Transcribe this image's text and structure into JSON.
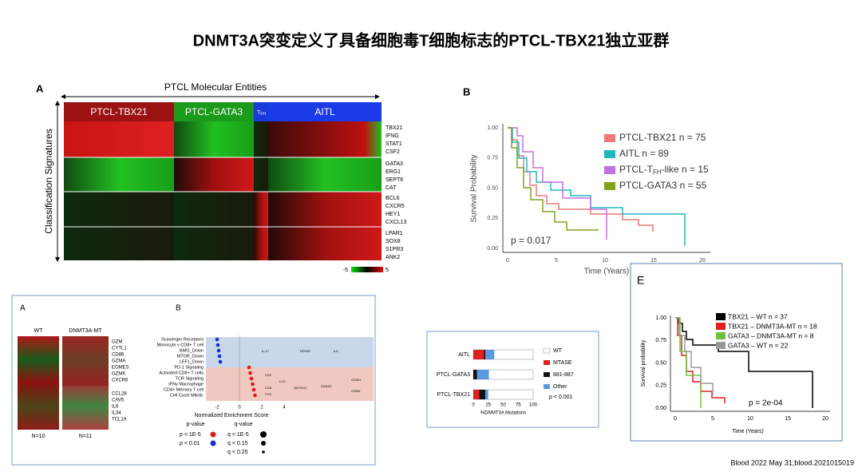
{
  "title": "DNMT3A突变定义了具备细胞毒T细胞标志的PTCL-TBX21独立亚群",
  "panel_a": {
    "label": "A",
    "header": "PTCL Molecular Entities",
    "y_label": "Classification Signatures",
    "groups": [
      "PTCL-TBX21",
      "PTCL-GATA3",
      "T",
      "AITL"
    ],
    "group_sub": "FH",
    "genes": [
      [
        "TBX21",
        "IFNG",
        "STAT1",
        "CSF2"
      ],
      [
        "GATA3",
        "ERG1",
        "SEPT6",
        "CAT"
      ],
      [
        "BCL6",
        "CXCR5",
        "HEY1",
        "CXCL13"
      ],
      [
        "LPAR1",
        "SOX8",
        "S1PR3",
        "ANK2"
      ]
    ],
    "scale": [
      "-5",
      "5"
    ]
  },
  "panel_b": {
    "label": "B",
    "y_label": "Survival Probability",
    "x_label": "Time (Years)",
    "yticks": [
      "1.00",
      "0.75",
      "0.50",
      "0.25",
      "0.00"
    ],
    "xticks": [
      "0",
      "5",
      "10",
      "15",
      "20"
    ],
    "legend": [
      "PTCL-TBX21 n = 75",
      "AITL n = 89",
      {
        "pre": "PTCL-T",
        "sub": "FH",
        "post": "-like n = 15"
      },
      "PTCL-GATA3 n = 55"
    ],
    "pvalue": "p = 0.017"
  },
  "panel_e": {
    "label": "E",
    "y_label": "Survival probability",
    "x_label": "Time (Years)",
    "yticks": [
      "1.00",
      "0.75",
      "0.50",
      "0.25",
      "0.00"
    ],
    "xticks": [
      "0",
      "5",
      "10",
      "15",
      "20"
    ],
    "legend": [
      "TBX21 – WT n = 37",
      "TBX21 – DNMT3A-MT n = 18",
      "GATA3 – DNMT3A-MT n = 8",
      "GATA3 – WT n = 22"
    ],
    "pvalue": "p = 2e-04"
  },
  "bar_panel": {
    "categories": [
      "AITL",
      "PTCL-GATA3",
      "PTCL-TBX21"
    ],
    "xlim": [
      0,
      100
    ],
    "xticks": [
      0,
      25,
      50,
      75,
      100
    ],
    "x_label": "%DNMT3A Mutations",
    "series": [
      {
        "name": "MTASE",
        "color": "#e02020",
        "values": [
          18,
          0,
          10
        ]
      },
      {
        "name": "881-887",
        "color": "#111111",
        "values": [
          2,
          6,
          10
        ]
      },
      {
        "name": "Other",
        "color": "#5a9be0",
        "values": [
          15,
          20,
          5
        ]
      }
    ],
    "wt_label": "WT",
    "pvalue": "p < 0.001"
  },
  "panel_bl": {
    "label_a": "A",
    "label_b": "B",
    "wt": "WT",
    "mt": "DNMT3A-MT",
    "genes_top": [
      "GZM",
      "CYTL1",
      "CD86",
      "GZMA",
      "EOMES",
      "GZMK",
      "CXCR6"
    ],
    "genes_bottom": [
      "CCL28",
      "CAV5",
      "IL6",
      "IL34",
      "TCL1A"
    ],
    "n_wt": "N=10",
    "n_mt": "N=11",
    "pathways": [
      "Scavenger Receptors",
      "Monocyte v CD8+ T cell",
      "BMI1_Down",
      "MTOR_Down",
      "LEF1_Down",
      "PD-1 Signaling",
      "Activated CD8+ T cells",
      "TCR Signaling",
      "IFNγ Macrophage",
      "CD4+ Memory T cell",
      "Cell Cycle Mitotic"
    ],
    "x_label": "Normalized Enrichment Score",
    "xticks": [
      "-2",
      "0",
      "2",
      "4"
    ],
    "p_title": "p-value",
    "p_items": [
      "p < 1E-5",
      "p < 0.01"
    ],
    "q_title": "q-value",
    "q_items": [
      "q < 1E-5",
      "q < 0.15",
      "q < 0.25"
    ],
    "nodes": [
      "IL-17",
      "NFKB2",
      "IL6",
      "CD2",
      "LCK",
      "CD8",
      "FYN",
      "NOTCH1",
      "CDKN2",
      "GZMH",
      "GZMK"
    ]
  },
  "citation": "Blood 2022 May 31;blood.2021015019"
}
